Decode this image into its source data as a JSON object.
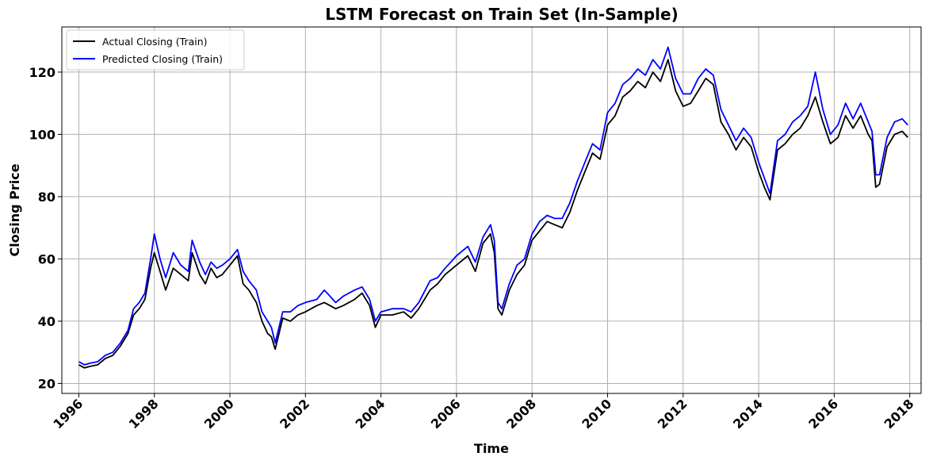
{
  "chart_data": {
    "type": "line",
    "title": "LSTM Forecast on Train Set (In-Sample)",
    "xlabel": "Time",
    "ylabel": "Closing Price",
    "xlim": [
      1995.55,
      2018.3
    ],
    "ylim": [
      16.8,
      134.5
    ],
    "x_ticks": [
      1996,
      1998,
      2000,
      2002,
      2004,
      2006,
      2008,
      2010,
      2012,
      2014,
      2016,
      2018
    ],
    "x_tick_labels": [
      "1996",
      "1998",
      "2000",
      "2002",
      "2004",
      "2006",
      "2008",
      "2010",
      "2012",
      "2014",
      "2016",
      "2018"
    ],
    "y_ticks": [
      20,
      40,
      60,
      80,
      100,
      120
    ],
    "y_tick_labels": [
      "20",
      "40",
      "60",
      "80",
      "100",
      "120"
    ],
    "grid": true,
    "legend_position": "top-left",
    "series": [
      {
        "name": "Actual Closing (Train)",
        "color": "#000000",
        "x": [
          1996.0,
          1996.15,
          1996.3,
          1996.5,
          1996.7,
          1996.9,
          1997.1,
          1997.3,
          1997.45,
          1997.6,
          1997.75,
          1997.9,
          1998.0,
          1998.15,
          1998.3,
          1998.5,
          1998.7,
          1998.9,
          1999.0,
          1999.2,
          1999.35,
          1999.5,
          1999.65,
          1999.8,
          2000.0,
          2000.2,
          2000.35,
          2000.5,
          2000.7,
          2000.85,
          2001.0,
          2001.1,
          2001.2,
          2001.4,
          2001.6,
          2001.8,
          2002.0,
          2002.3,
          2002.5,
          2002.8,
          2003.0,
          2003.3,
          2003.5,
          2003.7,
          2003.85,
          2004.0,
          2004.3,
          2004.6,
          2004.8,
          2005.0,
          2005.3,
          2005.5,
          2005.7,
          2006.0,
          2006.3,
          2006.5,
          2006.7,
          2006.9,
          2007.0,
          2007.1,
          2007.2,
          2007.4,
          2007.6,
          2007.8,
          2008.0,
          2008.2,
          2008.4,
          2008.6,
          2008.8,
          2009.0,
          2009.2,
          2009.4,
          2009.6,
          2009.8,
          2010.0,
          2010.2,
          2010.4,
          2010.6,
          2010.8,
          2011.0,
          2011.2,
          2011.4,
          2011.6,
          2011.8,
          2012.0,
          2012.2,
          2012.4,
          2012.6,
          2012.8,
          2013.0,
          2013.2,
          2013.4,
          2013.6,
          2013.8,
          2014.0,
          2014.15,
          2014.3,
          2014.5,
          2014.7,
          2014.9,
          2015.1,
          2015.3,
          2015.5,
          2015.7,
          2015.9,
          2016.1,
          2016.3,
          2016.5,
          2016.7,
          2016.9,
          2017.0,
          2017.1,
          2017.2,
          2017.4,
          2017.6,
          2017.8,
          2017.95
        ],
        "y": [
          26,
          25,
          25.5,
          26,
          28,
          29,
          32,
          36,
          42,
          44,
          47,
          57,
          62,
          56,
          50,
          57,
          55,
          53,
          62,
          55,
          52,
          57,
          54,
          55,
          58,
          61,
          52,
          50,
          46,
          40,
          36,
          35,
          31,
          41,
          40,
          42,
          43,
          45,
          46,
          44,
          45,
          47,
          49,
          45,
          38,
          42,
          42,
          43,
          41,
          44,
          50,
          52,
          55,
          58,
          61,
          56,
          65,
          68,
          62,
          44,
          42,
          50,
          55,
          58,
          66,
          69,
          72,
          71,
          70,
          75,
          82,
          88,
          94,
          92,
          103,
          106,
          112,
          114,
          117,
          115,
          120,
          117,
          124,
          114,
          109,
          110,
          114,
          118,
          116,
          104,
          100,
          95,
          99,
          96,
          88,
          83,
          79,
          95,
          97,
          100,
          102,
          106,
          112,
          104,
          97,
          99,
          106,
          102,
          106,
          100,
          98,
          83,
          84,
          96,
          100,
          101,
          99
        ]
      },
      {
        "name": "Predicted Closing (Train)",
        "color": "#0000ff",
        "x": [
          1996.0,
          1996.15,
          1996.3,
          1996.5,
          1996.7,
          1996.9,
          1997.1,
          1997.3,
          1997.45,
          1997.6,
          1997.75,
          1997.9,
          1998.0,
          1998.15,
          1998.3,
          1998.5,
          1998.7,
          1998.9,
          1999.0,
          1999.2,
          1999.35,
          1999.5,
          1999.65,
          1999.8,
          2000.0,
          2000.2,
          2000.35,
          2000.5,
          2000.7,
          2000.85,
          2001.0,
          2001.1,
          2001.2,
          2001.4,
          2001.6,
          2001.8,
          2002.0,
          2002.3,
          2002.5,
          2002.8,
          2003.0,
          2003.3,
          2003.5,
          2003.7,
          2003.85,
          2004.0,
          2004.3,
          2004.6,
          2004.8,
          2005.0,
          2005.3,
          2005.5,
          2005.7,
          2006.0,
          2006.3,
          2006.5,
          2006.7,
          2006.9,
          2007.0,
          2007.1,
          2007.2,
          2007.4,
          2007.6,
          2007.8,
          2008.0,
          2008.2,
          2008.4,
          2008.6,
          2008.8,
          2009.0,
          2009.2,
          2009.4,
          2009.6,
          2009.8,
          2010.0,
          2010.2,
          2010.4,
          2010.6,
          2010.8,
          2011.0,
          2011.2,
          2011.4,
          2011.6,
          2011.8,
          2012.0,
          2012.2,
          2012.4,
          2012.6,
          2012.8,
          2013.0,
          2013.2,
          2013.4,
          2013.6,
          2013.8,
          2014.0,
          2014.15,
          2014.3,
          2014.5,
          2014.7,
          2014.9,
          2015.1,
          2015.3,
          2015.5,
          2015.7,
          2015.9,
          2016.1,
          2016.3,
          2016.5,
          2016.7,
          2016.9,
          2017.0,
          2017.1,
          2017.2,
          2017.4,
          2017.6,
          2017.8,
          2017.95
        ],
        "y": [
          27,
          26,
          26.5,
          27,
          29,
          30,
          33,
          37,
          44,
          46,
          49,
          60,
          68,
          60,
          54,
          62,
          58,
          56,
          66,
          59,
          55,
          59,
          57,
          58,
          60,
          63,
          56,
          53,
          50,
          43,
          40,
          38,
          33,
          43,
          43,
          45,
          46,
          47,
          50,
          46,
          48,
          50,
          51,
          47,
          40,
          43,
          44,
          44,
          43,
          46,
          53,
          54,
          57,
          61,
          64,
          59,
          67,
          71,
          66,
          46,
          44,
          52,
          58,
          60,
          68,
          72,
          74,
          73,
          73,
          78,
          85,
          91,
          97,
          95,
          107,
          110,
          116,
          118,
          121,
          119,
          124,
          121,
          128,
          118,
          113,
          113,
          118,
          121,
          119,
          108,
          103,
          98,
          102,
          99,
          91,
          86,
          81,
          98,
          100,
          104,
          106,
          109,
          120,
          108,
          100,
          103,
          110,
          105,
          110,
          104,
          101,
          87,
          87,
          99,
          104,
          105,
          103
        ]
      }
    ]
  }
}
